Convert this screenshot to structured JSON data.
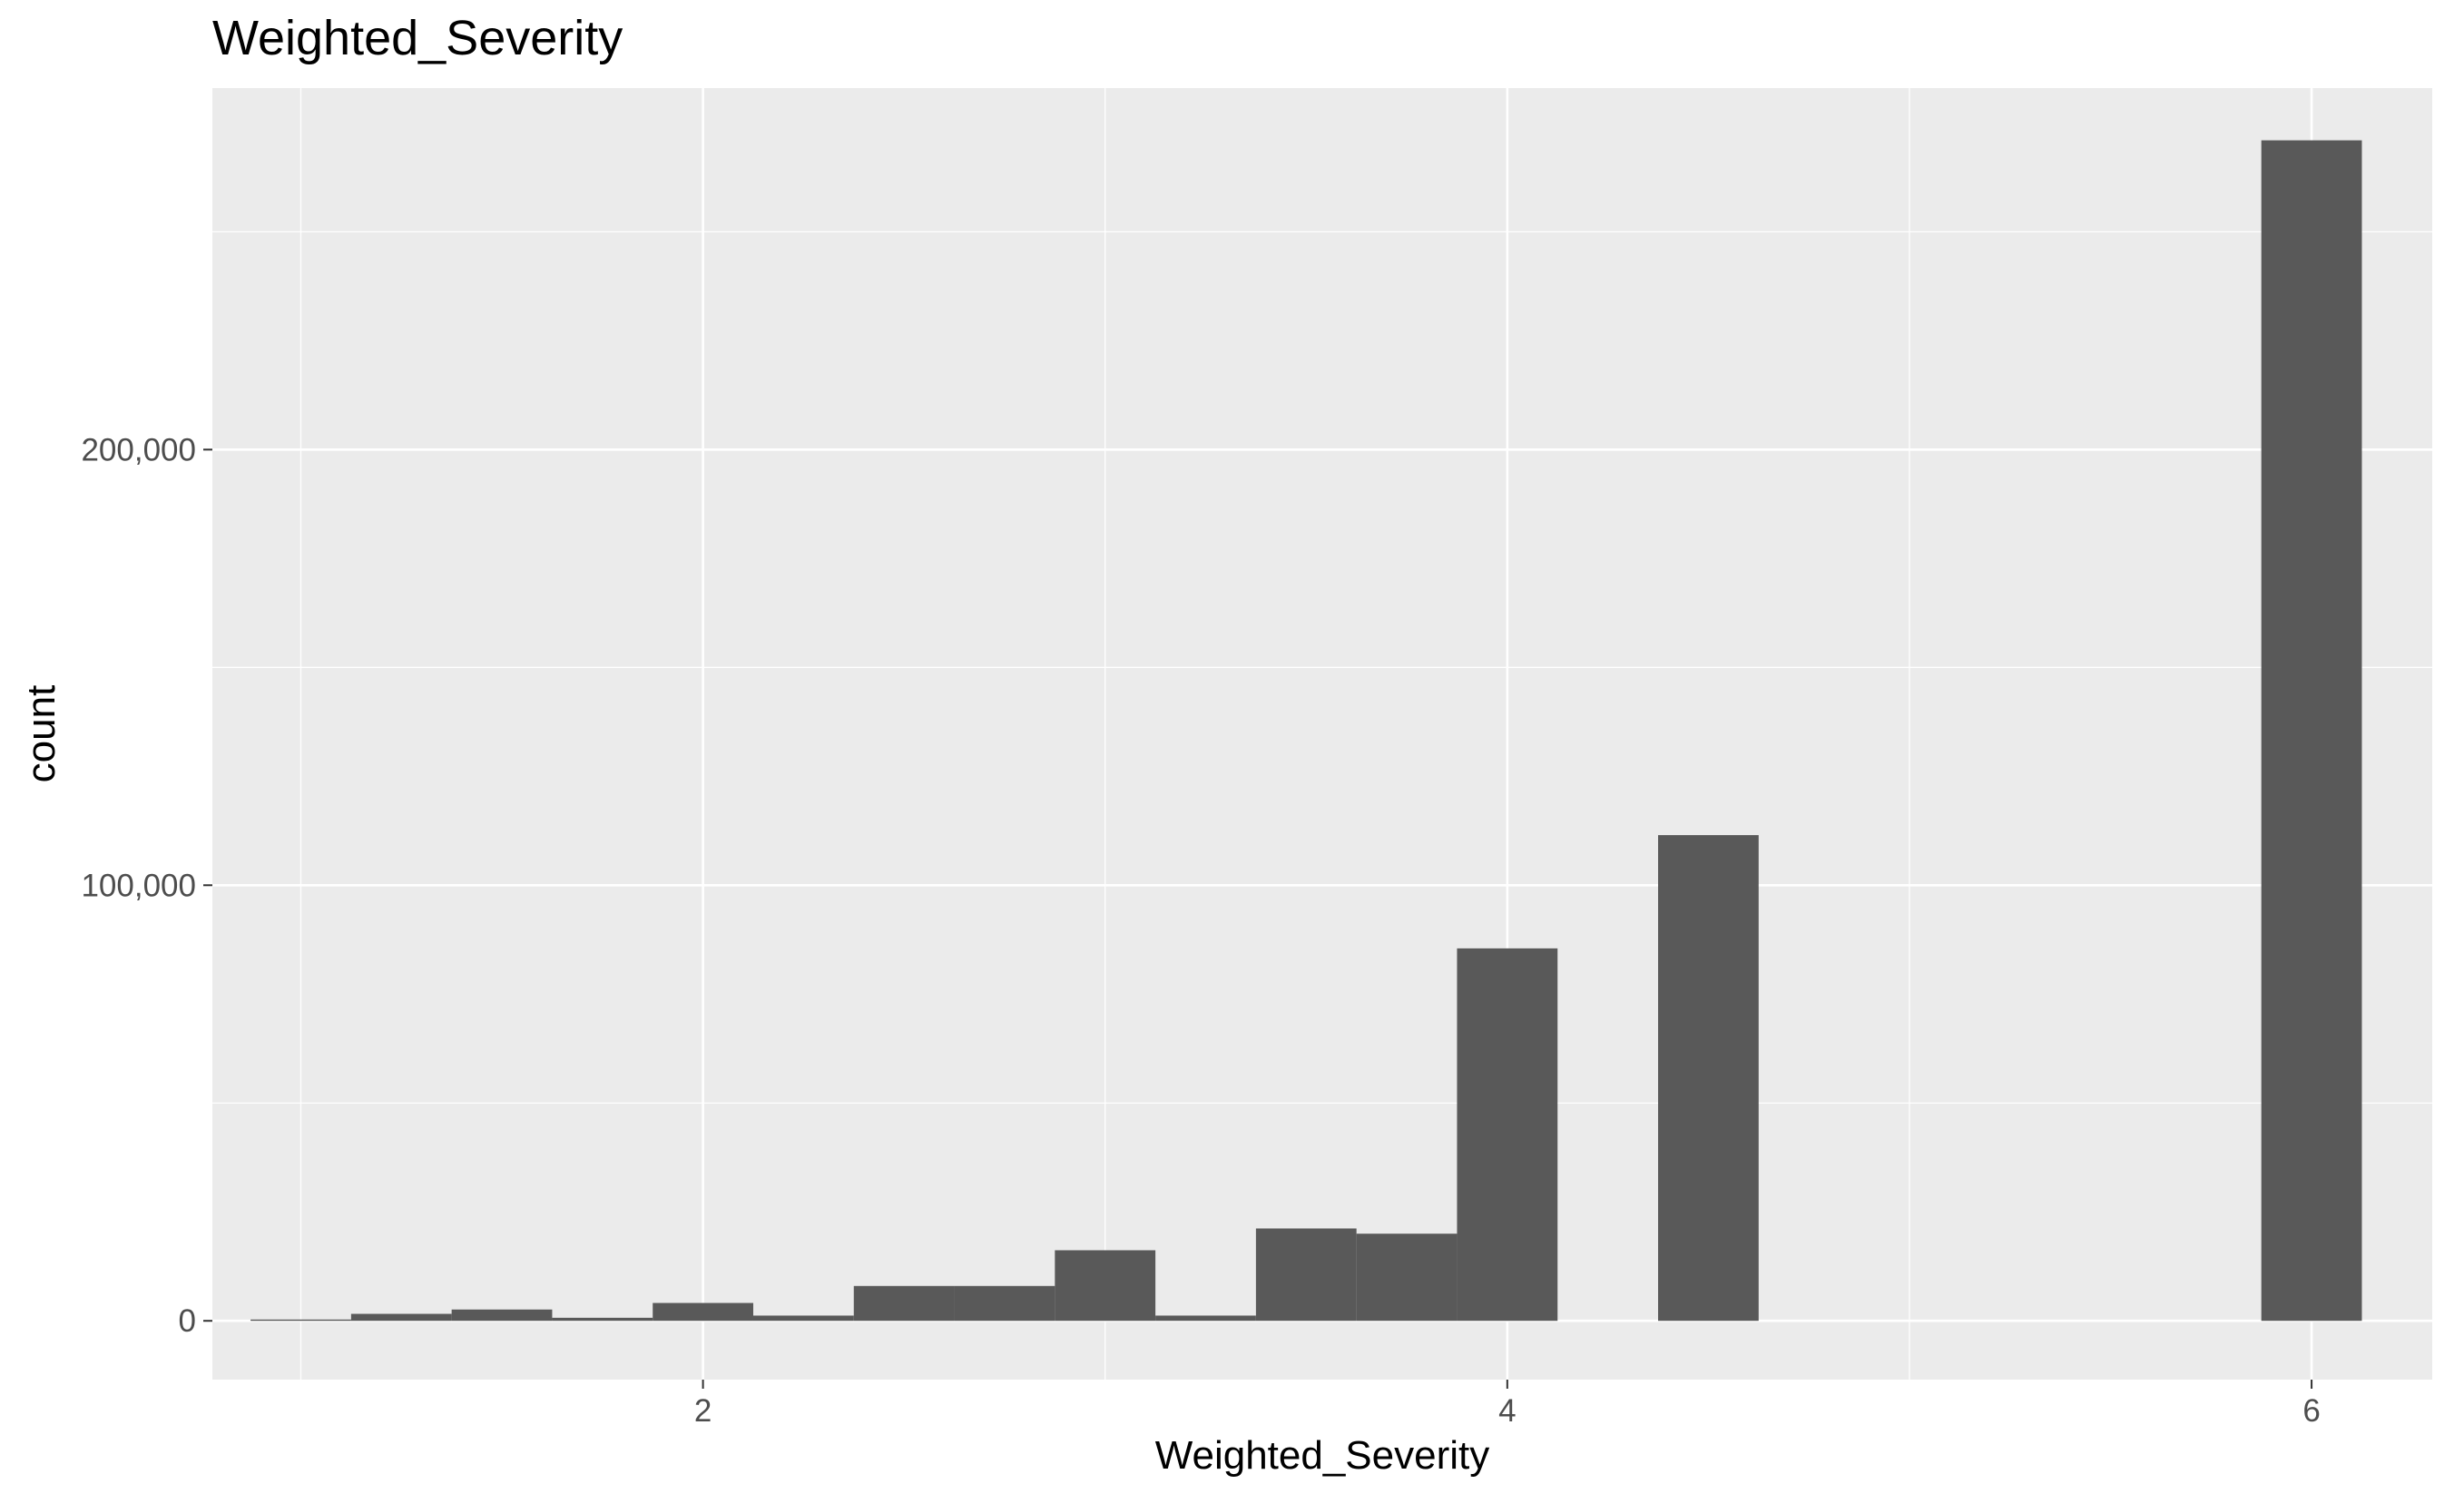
{
  "chart_data": {
    "type": "bar",
    "title": "Weighted_Severity",
    "xlabel": "Weighted_Severity",
    "ylabel": "count",
    "xlim": [
      0.78,
      6.3
    ],
    "ylim": [
      -13500,
      283000
    ],
    "x_ticks": [
      2,
      4,
      6
    ],
    "x_tick_labels": [
      "2",
      "4",
      "6"
    ],
    "y_ticks": [
      0,
      100000,
      200000
    ],
    "y_tick_labels": [
      "0",
      "100,000",
      "200,000"
    ],
    "bin_width": 0.25,
    "bins": [
      {
        "x_start": 0.875,
        "x_end": 1.125,
        "count": 300
      },
      {
        "x_start": 1.125,
        "x_end": 1.375,
        "count": 1600
      },
      {
        "x_start": 1.375,
        "x_end": 1.625,
        "count": 2600
      },
      {
        "x_start": 1.625,
        "x_end": 1.875,
        "count": 700
      },
      {
        "x_start": 1.875,
        "x_end": 2.125,
        "count": 4100
      },
      {
        "x_start": 2.125,
        "x_end": 2.375,
        "count": 1200
      },
      {
        "x_start": 2.375,
        "x_end": 2.625,
        "count": 8000
      },
      {
        "x_start": 2.625,
        "x_end": 2.875,
        "count": 8000
      },
      {
        "x_start": 2.875,
        "x_end": 3.125,
        "count": 16200
      },
      {
        "x_start": 3.125,
        "x_end": 3.375,
        "count": 1200
      },
      {
        "x_start": 3.375,
        "x_end": 3.625,
        "count": 21200
      },
      {
        "x_start": 3.625,
        "x_end": 3.875,
        "count": 20000
      },
      {
        "x_start": 3.875,
        "x_end": 4.125,
        "count": 85500
      },
      {
        "x_start": 4.375,
        "x_end": 4.625,
        "count": 111500
      },
      {
        "x_start": 5.875,
        "x_end": 6.125,
        "count": 271000
      }
    ],
    "grid": true,
    "legend": "none",
    "colors": {
      "bar": "#595959",
      "panel": "#ebebeb",
      "grid": "#ffffff",
      "background": "#ffffff"
    }
  }
}
